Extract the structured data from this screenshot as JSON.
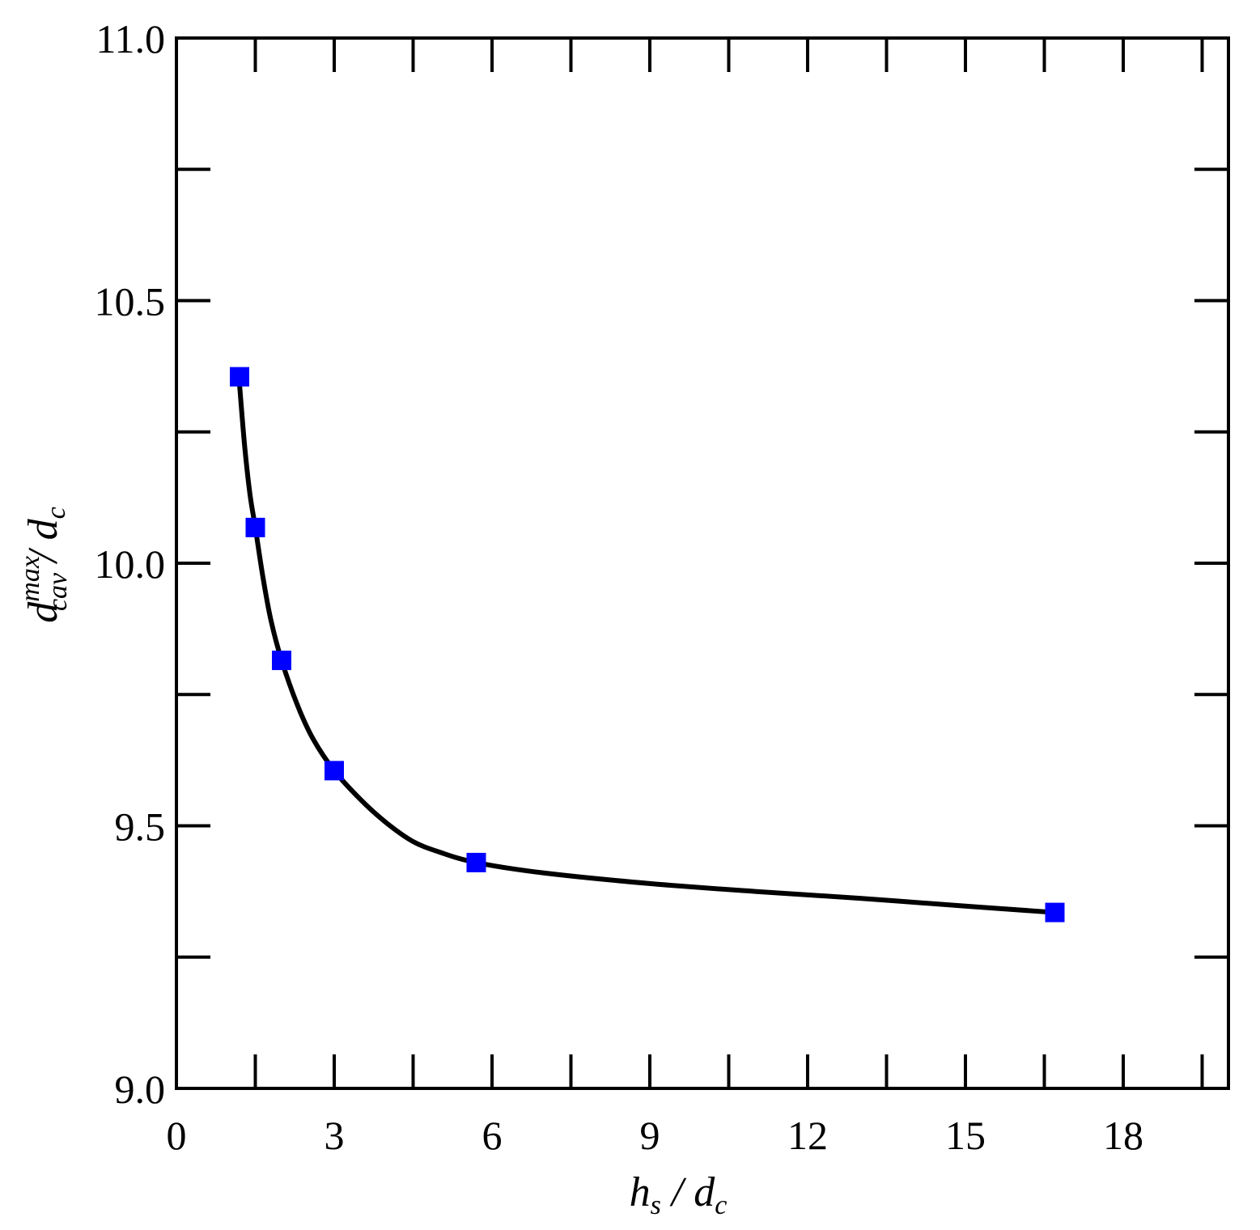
{
  "chart_data": {
    "type": "scatter",
    "title": "",
    "xlabel": {
      "main": "h",
      "sub": "s",
      "rest": " / d",
      "rest_sub": "c"
    },
    "ylabel": {
      "main": "d",
      "sup": "max",
      "sub": "cav",
      "rest": " / d",
      "rest_sub": "c"
    },
    "xlim": [
      0,
      20
    ],
    "ylim": [
      9.0,
      11.0
    ],
    "x_ticks": [
      0,
      3,
      6,
      9,
      12,
      15,
      18
    ],
    "x_tick_labels": [
      "0",
      "3",
      "6",
      "9",
      "12",
      "15",
      "18"
    ],
    "x_minor_ticks": [
      1.5,
      4.5,
      7.5,
      10.5,
      13.5,
      16.5,
      19.5
    ],
    "y_ticks": [
      9.0,
      9.5,
      10.0,
      10.5,
      11.0
    ],
    "y_tick_labels": [
      "9.0",
      "9.5",
      "10.0",
      "10.5",
      "11.0"
    ],
    "y_minor_ticks": [
      9.25,
      9.75,
      10.25,
      10.75
    ],
    "grid": false,
    "marker_color": "#0000ff",
    "line_color": "#000000",
    "series": [
      {
        "marker": "square",
        "points": [
          {
            "x": 1.2,
            "y": 10.355
          },
          {
            "x": 1.5,
            "y": 10.068
          },
          {
            "x": 2.0,
            "y": 9.815
          },
          {
            "x": 3.0,
            "y": 9.605
          },
          {
            "x": 5.7,
            "y": 9.43
          },
          {
            "x": 16.7,
            "y": 9.335
          }
        ]
      }
    ],
    "fit_curve": [
      {
        "x": 1.2,
        "y": 10.34
      },
      {
        "x": 1.3,
        "y": 10.22
      },
      {
        "x": 1.4,
        "y": 10.13
      },
      {
        "x": 1.5,
        "y": 10.068
      },
      {
        "x": 1.65,
        "y": 9.97
      },
      {
        "x": 1.8,
        "y": 9.89
      },
      {
        "x": 2.0,
        "y": 9.815
      },
      {
        "x": 2.3,
        "y": 9.73
      },
      {
        "x": 2.6,
        "y": 9.665
      },
      {
        "x": 3.0,
        "y": 9.605
      },
      {
        "x": 3.5,
        "y": 9.55
      },
      {
        "x": 4.0,
        "y": 9.505
      },
      {
        "x": 4.5,
        "y": 9.47
      },
      {
        "x": 5.0,
        "y": 9.45
      },
      {
        "x": 5.7,
        "y": 9.43
      },
      {
        "x": 7.0,
        "y": 9.41
      },
      {
        "x": 9.0,
        "y": 9.39
      },
      {
        "x": 11.0,
        "y": 9.375
      },
      {
        "x": 13.0,
        "y": 9.362
      },
      {
        "x": 15.0,
        "y": 9.347
      },
      {
        "x": 16.7,
        "y": 9.335
      }
    ]
  }
}
